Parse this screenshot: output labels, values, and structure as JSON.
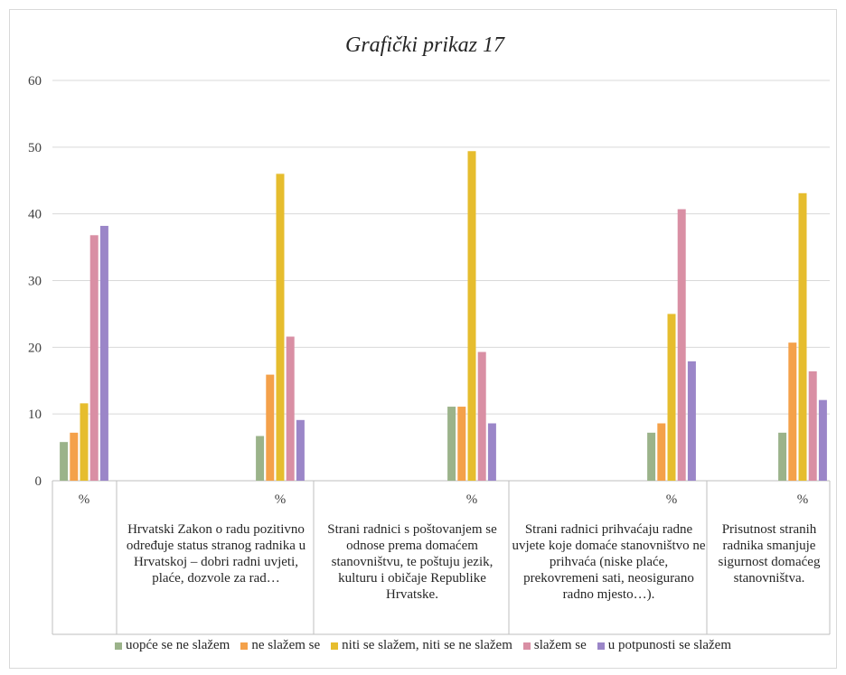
{
  "chart_data": {
    "type": "bar",
    "title": "Grafički prikaz 17",
    "ylim": [
      0,
      60
    ],
    "yticks": [
      0,
      10,
      20,
      30,
      40,
      50,
      60
    ],
    "grid": true,
    "legend_position": "bottom",
    "categories": [
      {
        "label": "%",
        "description": ""
      },
      {
        "label": "%",
        "description": "Hrvatski Zakon o radu pozitivno određuje status stranog radnika u Hrvatskoj – dobri radni uvjeti,  plaće, dozvole za rad…"
      },
      {
        "label": "%",
        "description": "Strani radnici s poštovanjem se odnose prema domaćem stanovništvu, te poštuju jezik, kulturu i običaje Republike Hrvatske."
      },
      {
        "label": "%",
        "description": "Strani radnici prihvaćaju radne uvjete koje domaće stanovništvo ne prihvaća (niske plaće, prekovremeni sati, neosigurano radno mjesto…)."
      },
      {
        "label": "%",
        "description": "Prisutnost stranih radnika smanjuje sigurnost domaćeg stanovništva."
      }
    ],
    "series": [
      {
        "name": "uopće se ne slažem",
        "color": "#9bb38a",
        "values": [
          5.8,
          6.7,
          11.1,
          7.2,
          7.2
        ]
      },
      {
        "name": "ne slažem se",
        "color": "#f4a14a",
        "values": [
          7.2,
          15.9,
          11.1,
          8.6,
          20.7
        ]
      },
      {
        "name": "niti se slažem, niti se ne slažem",
        "color": "#e6bd2e",
        "values": [
          11.6,
          46.0,
          49.4,
          25.0,
          43.1
        ]
      },
      {
        "name": "slažem se",
        "color": "#d98fa4",
        "values": [
          36.8,
          21.6,
          19.3,
          40.7,
          16.4
        ]
      },
      {
        "name": "u potpunosti se slažem",
        "color": "#9b86c8",
        "values": [
          38.2,
          9.1,
          8.6,
          17.9,
          12.1
        ]
      }
    ]
  }
}
